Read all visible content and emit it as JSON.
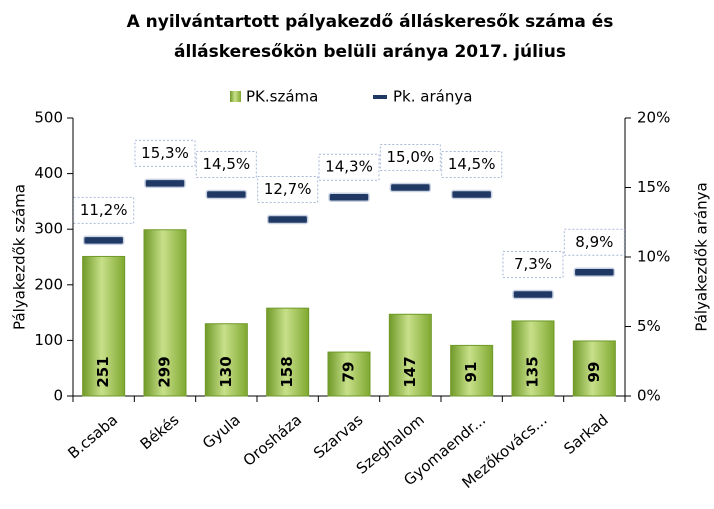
{
  "chart_data": {
    "type": "bar",
    "title": [
      "A nyilvántartott  pályakezdő álláskeresők száma és",
      "álláskeresőkön belüli aránya 2017. július"
    ],
    "categories": [
      "B.csaba",
      "Békés",
      "Gyula",
      "Orosháza",
      "Szarvas",
      "Szeghalom",
      "Gyomaendr...",
      "Mezőkovács...",
      "Sarkad"
    ],
    "series": [
      {
        "name": "PK.száma",
        "color": "#8db83c",
        "values": [
          251,
          299,
          130,
          158,
          79,
          147,
          91,
          135,
          99
        ]
      },
      {
        "name": "Pk. aránya",
        "color": "#1f3864",
        "axis": "y2",
        "values": [
          11.2,
          15.3,
          14.5,
          12.7,
          14.3,
          15.0,
          14.5,
          7.3,
          8.9
        ],
        "value_labels": [
          "11,2%",
          "15,3%",
          "14,5%",
          "12,7%",
          "14,3%",
          "15,0%",
          "14,5%",
          "7,3%",
          "8,9%"
        ]
      }
    ],
    "ylabel": "Pályakezdők száma",
    "y2label": "Pályakezdők aránya",
    "ylim": [
      0,
      500
    ],
    "yticks": [
      0,
      100,
      200,
      300,
      400,
      500
    ],
    "y2lim": [
      0,
      20
    ],
    "y2ticks": [
      {
        "value": 0,
        "label": "0%"
      },
      {
        "value": 5,
        "label": "5%"
      },
      {
        "value": 10,
        "label": "10%"
      },
      {
        "value": 15,
        "label": "15%"
      },
      {
        "value": 20,
        "label": "20%"
      }
    ],
    "legend": "top"
  }
}
